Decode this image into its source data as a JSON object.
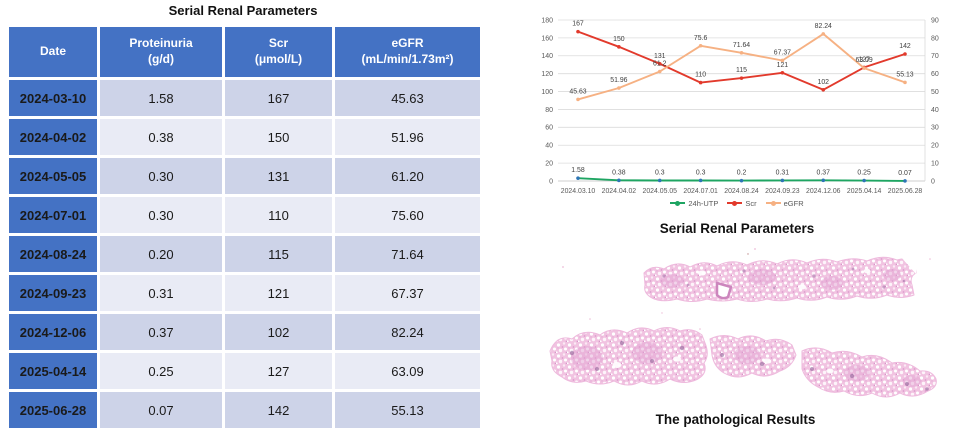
{
  "table": {
    "title": "Serial Renal Parameters",
    "columns": [
      {
        "label": "Date",
        "unit": ""
      },
      {
        "label": "Proteinuria",
        "unit": "(g/d)"
      },
      {
        "label": "Scr",
        "unit": "(μmol/L)"
      },
      {
        "label": "eGFR",
        "unit": "(mL/min/1.73m²)"
      }
    ],
    "rows": [
      {
        "date": "2024-03-10",
        "proteinuria": "1.58",
        "scr": "167",
        "egfr": "45.63"
      },
      {
        "date": "2024-04-02",
        "proteinuria": "0.38",
        "scr": "150",
        "egfr": "51.96"
      },
      {
        "date": "2024-05-05",
        "proteinuria": "0.30",
        "scr": "131",
        "egfr": "61.20"
      },
      {
        "date": "2024-07-01",
        "proteinuria": "0.30",
        "scr": "110",
        "egfr": "75.60"
      },
      {
        "date": "2024-08-24",
        "proteinuria": "0.20",
        "scr": "115",
        "egfr": "71.64"
      },
      {
        "date": "2024-09-23",
        "proteinuria": "0.31",
        "scr": "121",
        "egfr": "67.37"
      },
      {
        "date": "2024-12-06",
        "proteinuria": "0.37",
        "scr": "102",
        "egfr": "82.24"
      },
      {
        "date": "2025-04-14",
        "proteinuria": "0.25",
        "scr": "127",
        "egfr": "63.09"
      },
      {
        "date": "2025-06-28",
        "proteinuria": "0.07",
        "scr": "142",
        "egfr": "55.13"
      }
    ]
  },
  "chart_data": {
    "type": "line",
    "title": "Serial Renal Parameters",
    "x_labels": [
      "2024.03.10",
      "2024.04.02",
      "2024.05.05",
      "2024.07.01",
      "2024.08.24",
      "2024.09.23",
      "2024.12.06",
      "2025.04.14",
      "2025.06.28"
    ],
    "left_axis": {
      "min": 0,
      "max": 180,
      "step": 20
    },
    "right_axis": {
      "min": 0,
      "max": 90,
      "step": 10
    },
    "grid": true,
    "legend_position": "bottom",
    "series": [
      {
        "name": "24h-UTP",
        "axis": "right",
        "color": "#1ea562",
        "marker": "#2e75b6",
        "values": [
          1.58,
          0.38,
          0.3,
          0.3,
          0.2,
          0.31,
          0.37,
          0.25,
          0.07
        ],
        "labels": [
          "1.58",
          "0.38",
          "0.3",
          "0.3",
          "0.2",
          "0.31",
          "0.37",
          "0.25",
          "0.07"
        ]
      },
      {
        "name": "Scr",
        "axis": "left",
        "color": "#e23a2c",
        "marker": "#e23a2c",
        "values": [
          167,
          150,
          131,
          110,
          115,
          121,
          102,
          127,
          142
        ],
        "labels": [
          "167",
          "150",
          "131",
          "110",
          "115",
          "121",
          "102",
          "127",
          "142"
        ]
      },
      {
        "name": "eGFR",
        "axis": "right",
        "color": "#f6b183",
        "marker": "#f6b183",
        "values": [
          45.63,
          51.96,
          61.2,
          75.6,
          71.64,
          67.37,
          82.24,
          63.09,
          55.13
        ],
        "labels": [
          "45.63",
          "51.96",
          "61.2",
          "75.6",
          "71.64",
          "67.37",
          "82.24",
          "63.09",
          "55.13"
        ]
      }
    ]
  },
  "pathology": {
    "title": "The pathological Results"
  }
}
